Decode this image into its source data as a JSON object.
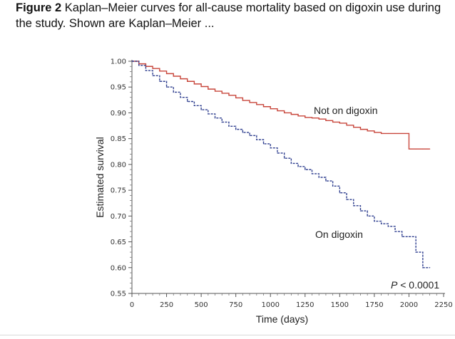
{
  "caption": {
    "figure_label": "Figure 2",
    "text": " Kaplan–Meier curves for all-cause mortality based on digoxin use during the study. Shown are Kaplan–Meier ..."
  },
  "colors": {
    "not_on_digoxin": "#c8463b",
    "on_digoxin": "#2f3f8f"
  },
  "chart_data": {
    "type": "line",
    "title": "",
    "xlabel": "Time (days)",
    "ylabel": "Estimated survival",
    "xlim": [
      0,
      2250
    ],
    "ylim": [
      0.55,
      1.0
    ],
    "x_ticks": [
      0,
      250,
      500,
      750,
      1000,
      1250,
      1500,
      1750,
      2000,
      2250
    ],
    "x_tick_labels": [
      "0",
      "250",
      "500",
      "750",
      "1000",
      "1250",
      "1500",
      "1750",
      "2000",
      "2250"
    ],
    "y_ticks": [
      0.55,
      0.6,
      0.65,
      0.7,
      0.75,
      0.8,
      0.85,
      0.9,
      0.95,
      1.0
    ],
    "y_tick_labels": [
      "0.55",
      "0.60",
      "0.65",
      "0.70",
      "0.75",
      "0.80",
      "0.85",
      "0.90",
      "0.95",
      "1.00"
    ],
    "annotation": {
      "p_label": "P",
      "p_text": " < 0.0001"
    },
    "series": [
      {
        "name": "Not on digoxin",
        "style": "solid",
        "x": [
          0,
          50,
          100,
          150,
          200,
          250,
          300,
          350,
          400,
          450,
          500,
          550,
          600,
          650,
          700,
          750,
          800,
          850,
          900,
          950,
          1000,
          1050,
          1100,
          1150,
          1200,
          1250,
          1300,
          1350,
          1400,
          1450,
          1500,
          1550,
          1600,
          1650,
          1700,
          1750,
          1800,
          1850,
          1900,
          1950,
          2000,
          2000,
          2050,
          2100,
          2150
        ],
        "y": [
          1.0,
          0.995,
          0.99,
          0.986,
          0.981,
          0.976,
          0.971,
          0.966,
          0.961,
          0.956,
          0.951,
          0.946,
          0.942,
          0.938,
          0.934,
          0.929,
          0.924,
          0.92,
          0.916,
          0.912,
          0.908,
          0.904,
          0.9,
          0.897,
          0.894,
          0.891,
          0.89,
          0.888,
          0.885,
          0.882,
          0.88,
          0.876,
          0.872,
          0.868,
          0.865,
          0.862,
          0.86,
          0.86,
          0.86,
          0.86,
          0.86,
          0.83,
          0.83,
          0.83,
          0.83
        ]
      },
      {
        "name": "On digoxin",
        "style": "dashed",
        "x": [
          0,
          50,
          100,
          150,
          200,
          250,
          300,
          350,
          400,
          450,
          500,
          550,
          600,
          650,
          700,
          750,
          800,
          850,
          900,
          950,
          1000,
          1050,
          1100,
          1150,
          1200,
          1250,
          1300,
          1350,
          1400,
          1450,
          1500,
          1550,
          1600,
          1650,
          1700,
          1750,
          1800,
          1850,
          1900,
          1950,
          2000,
          2050,
          2100,
          2150
        ],
        "y": [
          1.0,
          0.992,
          0.982,
          0.972,
          0.961,
          0.95,
          0.94,
          0.93,
          0.922,
          0.914,
          0.906,
          0.898,
          0.89,
          0.882,
          0.874,
          0.868,
          0.862,
          0.856,
          0.848,
          0.84,
          0.832,
          0.822,
          0.812,
          0.802,
          0.796,
          0.79,
          0.782,
          0.775,
          0.768,
          0.758,
          0.745,
          0.732,
          0.72,
          0.71,
          0.7,
          0.69,
          0.685,
          0.68,
          0.67,
          0.66,
          0.66,
          0.63,
          0.6,
          0.6
        ]
      }
    ],
    "series_labels": [
      "Not on digoxin",
      "On digoxin"
    ]
  }
}
